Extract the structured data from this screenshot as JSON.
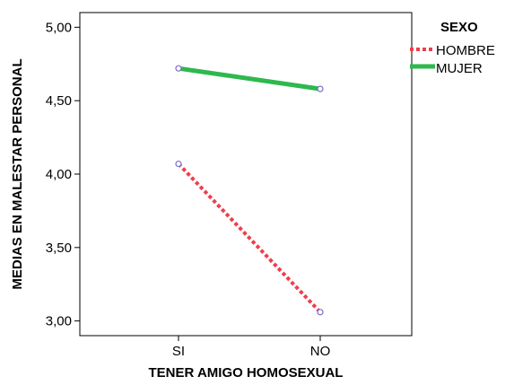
{
  "chart_data": {
    "type": "line",
    "title": "",
    "xlabel": "TENER AMIGO HOMOSEXUAL",
    "ylabel": "MEDIAS EN MALESTAR PERSONAL",
    "categories": [
      "SI",
      "NO"
    ],
    "yticks": [
      "3,00",
      "3,50",
      "4,00",
      "4,50",
      "5,00"
    ],
    "ytick_values": [
      3.0,
      3.5,
      4.0,
      4.5,
      5.0
    ],
    "ylim": [
      2.9,
      5.1
    ],
    "grid": false,
    "legend": {
      "title": "SEXO",
      "placement": "right"
    },
    "series": [
      {
        "name": "HOMBRE",
        "values": [
          4.07,
          3.06
        ],
        "color": "#ef3e4a",
        "line_style": "dotted"
      },
      {
        "name": "MUJER",
        "values": [
          4.72,
          4.58
        ],
        "color": "#2db94d",
        "line_style": "solid"
      }
    ],
    "marker_color": "#7a6fc9"
  }
}
